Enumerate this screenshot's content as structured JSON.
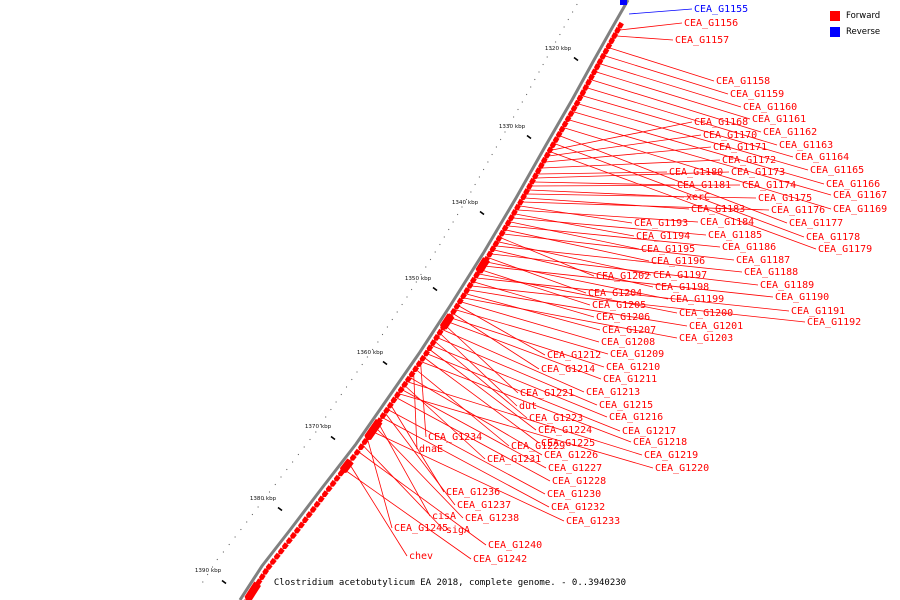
{
  "legend": {
    "forward_label": "Forward",
    "forward_color": "#ff0000",
    "reverse_label": "Reverse",
    "reverse_color": "#0000ff"
  },
  "caption": "Clostridium acetobutylicum EA 2018, complete genome. - 0..3940230",
  "backbone_color": "#808080",
  "ticks": [
    "1320 kbp",
    "1330 kbp",
    "1340 kbp",
    "1350 kbp",
    "1360 kbp",
    "1370 kbp",
    "1380 kbp",
    "1390 kbp"
  ],
  "genes": [
    {
      "label": "CEA_G1155",
      "strand": "reverse"
    },
    {
      "label": "CEA_G1156",
      "strand": "forward"
    },
    {
      "label": "CEA_G1157",
      "strand": "forward"
    },
    {
      "label": "CEA_G1158",
      "strand": "forward"
    },
    {
      "label": "CEA_G1159",
      "strand": "forward"
    },
    {
      "label": "CEA_G1160",
      "strand": "forward"
    },
    {
      "label": "CEA_G1161",
      "strand": "forward"
    },
    {
      "label": "CEA_G1168",
      "strand": "forward"
    },
    {
      "label": "CEA_G1162",
      "strand": "forward"
    },
    {
      "label": "CEA_G1170",
      "strand": "forward"
    },
    {
      "label": "CEA_G1163",
      "strand": "forward"
    },
    {
      "label": "CEA_G1171",
      "strand": "forward"
    },
    {
      "label": "CEA_G1164",
      "strand": "forward"
    },
    {
      "label": "CEA_G1172",
      "strand": "forward"
    },
    {
      "label": "CEA_G1165",
      "strand": "forward"
    },
    {
      "label": "CEA_G1180",
      "strand": "forward"
    },
    {
      "label": "CEA_G1173",
      "strand": "forward"
    },
    {
      "label": "CEA_G1166",
      "strand": "forward"
    },
    {
      "label": "CEA_G1181",
      "strand": "forward"
    },
    {
      "label": "CEA_G1174",
      "strand": "forward"
    },
    {
      "label": "CEA_G1167",
      "strand": "forward"
    },
    {
      "label": "xerC",
      "strand": "forward"
    },
    {
      "label": "CEA_G1175",
      "strand": "forward"
    },
    {
      "label": "CEA_G1183",
      "strand": "forward"
    },
    {
      "label": "CEA_G1176",
      "strand": "forward"
    },
    {
      "label": "CEA_G1169",
      "strand": "forward"
    },
    {
      "label": "CEA_G1193",
      "strand": "forward"
    },
    {
      "label": "CEA_G1184",
      "strand": "forward"
    },
    {
      "label": "CEA_G1177",
      "strand": "forward"
    },
    {
      "label": "CEA_G1194",
      "strand": "forward"
    },
    {
      "label": "CEA_G1185",
      "strand": "forward"
    },
    {
      "label": "CEA_G1178",
      "strand": "forward"
    },
    {
      "label": "CEA_G1195",
      "strand": "forward"
    },
    {
      "label": "CEA_G1186",
      "strand": "forward"
    },
    {
      "label": "CEA_G1179",
      "strand": "forward"
    },
    {
      "label": "CEA_G1196",
      "strand": "forward"
    },
    {
      "label": "CEA_G1187",
      "strand": "forward"
    },
    {
      "label": "CEA_G1202",
      "strand": "forward"
    },
    {
      "label": "CEA_G1197",
      "strand": "forward"
    },
    {
      "label": "CEA_G1188",
      "strand": "forward"
    },
    {
      "label": "CEA_G1198",
      "strand": "forward"
    },
    {
      "label": "CEA_G1189",
      "strand": "forward"
    },
    {
      "label": "CEA_G1204",
      "strand": "forward"
    },
    {
      "label": "CEA_G1199",
      "strand": "forward"
    },
    {
      "label": "CEA_G1190",
      "strand": "forward"
    },
    {
      "label": "CEA_G1205",
      "strand": "forward"
    },
    {
      "label": "CEA_G1200",
      "strand": "forward"
    },
    {
      "label": "CEA_G1191",
      "strand": "forward"
    },
    {
      "label": "CEA_G1206",
      "strand": "forward"
    },
    {
      "label": "CEA_G1192",
      "strand": "forward"
    },
    {
      "label": "CEA_G1201",
      "strand": "forward"
    },
    {
      "label": "CEA_G1207",
      "strand": "forward"
    },
    {
      "label": "CEA_G1203",
      "strand": "forward"
    },
    {
      "label": "CEA_G1208",
      "strand": "forward"
    },
    {
      "label": "CEA_G1212",
      "strand": "forward"
    },
    {
      "label": "CEA_G1209",
      "strand": "forward"
    },
    {
      "label": "CEA_G1214",
      "strand": "forward"
    },
    {
      "label": "CEA_G1210",
      "strand": "forward"
    },
    {
      "label": "CEA_G1211",
      "strand": "forward"
    },
    {
      "label": "CEA_G1221",
      "strand": "forward"
    },
    {
      "label": "CEA_G1213",
      "strand": "forward"
    },
    {
      "label": "dut",
      "strand": "forward"
    },
    {
      "label": "CEA_G1215",
      "strand": "forward"
    },
    {
      "label": "CEA_G1223",
      "strand": "forward"
    },
    {
      "label": "CEA_G1216",
      "strand": "forward"
    },
    {
      "label": "CEA_G1224",
      "strand": "forward"
    },
    {
      "label": "CEA_G1217",
      "strand": "forward"
    },
    {
      "label": "CEA_G1234",
      "strand": "forward"
    },
    {
      "label": "CEA_G1225",
      "strand": "forward"
    },
    {
      "label": "CEA_G1218",
      "strand": "forward"
    },
    {
      "label": "CEA_G1229",
      "strand": "forward"
    },
    {
      "label": "dnaE",
      "strand": "forward"
    },
    {
      "label": "CEA_G1226",
      "strand": "forward"
    },
    {
      "label": "CEA_G1219",
      "strand": "forward"
    },
    {
      "label": "CEA_G1231",
      "strand": "forward"
    },
    {
      "label": "CEA_G1227",
      "strand": "forward"
    },
    {
      "label": "CEA_G1220",
      "strand": "forward"
    },
    {
      "label": "CEA_G1228",
      "strand": "forward"
    },
    {
      "label": "CEA_G1236",
      "strand": "forward"
    },
    {
      "label": "CEA_G1230",
      "strand": "forward"
    },
    {
      "label": "CEA_G1237",
      "strand": "forward"
    },
    {
      "label": "CEA_G1232",
      "strand": "forward"
    },
    {
      "label": "cisA",
      "strand": "forward"
    },
    {
      "label": "CEA_G1238",
      "strand": "forward"
    },
    {
      "label": "CEA_G1233",
      "strand": "forward"
    },
    {
      "label": "CEA_G1245",
      "strand": "forward"
    },
    {
      "label": "sigA",
      "strand": "forward"
    },
    {
      "label": "CEA_G1240",
      "strand": "forward"
    },
    {
      "label": "chev",
      "strand": "forward"
    },
    {
      "label": "CEA_G1242",
      "strand": "forward"
    }
  ]
}
